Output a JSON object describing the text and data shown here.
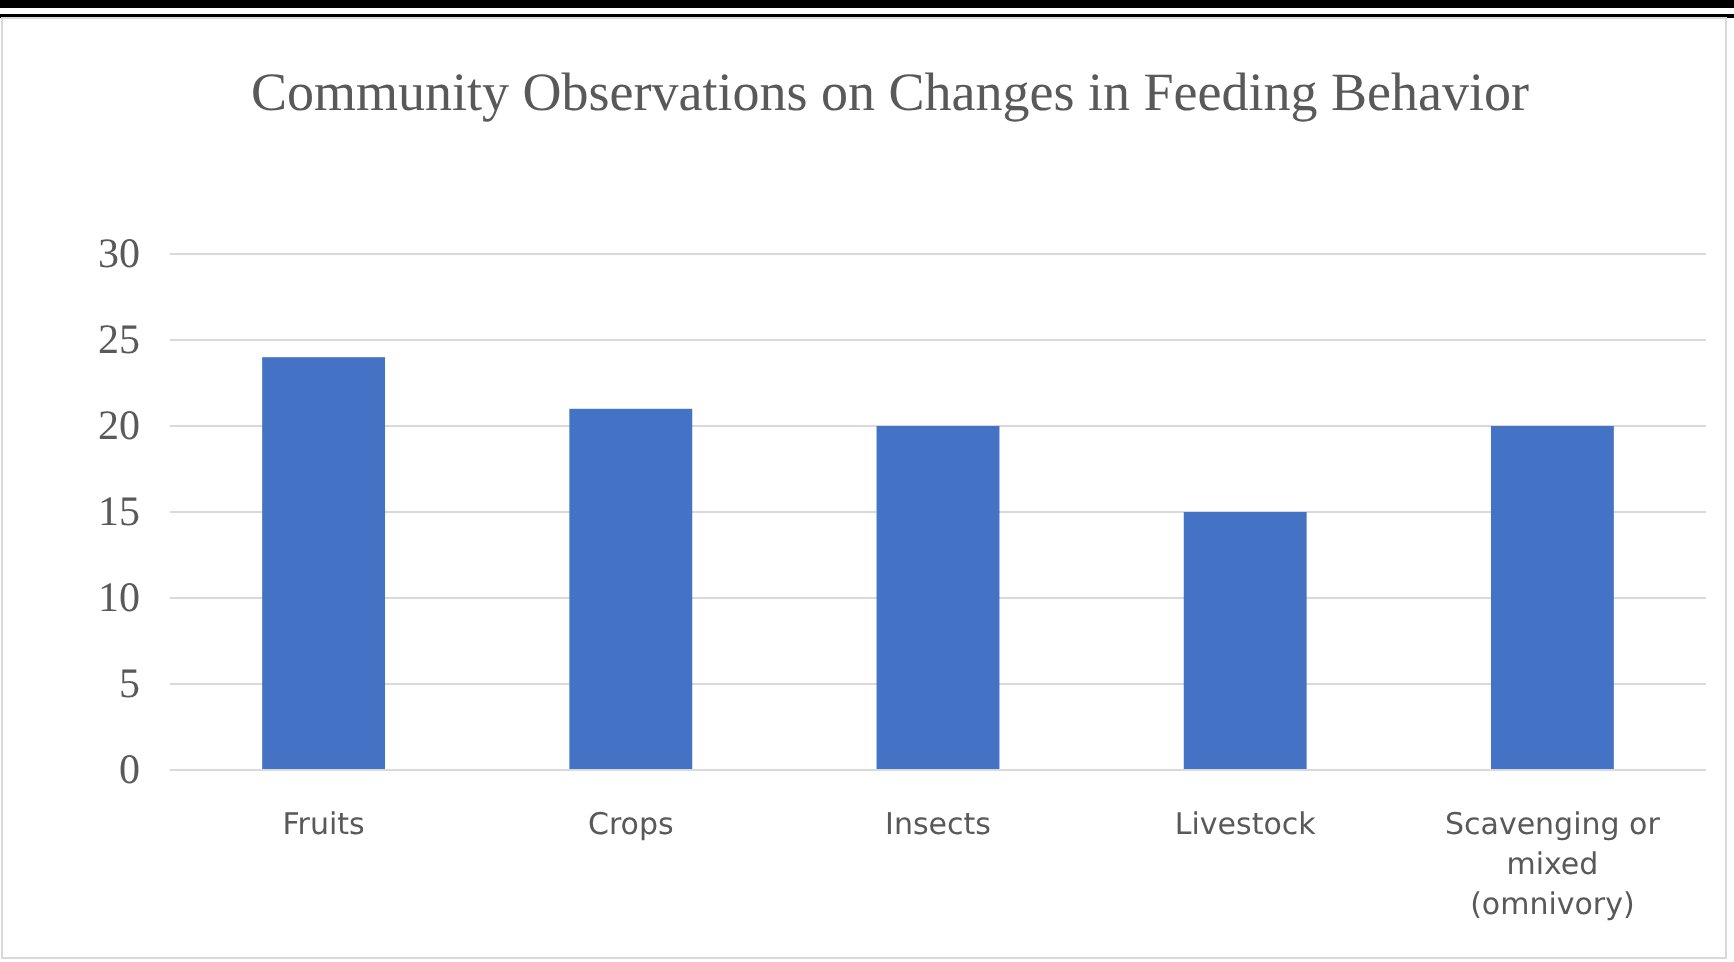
{
  "chart_data": {
    "type": "bar",
    "title": "Community  Observations on Changes  in Feeding Behavior",
    "categories": [
      "Fruits",
      "Crops",
      "Insects",
      "Livestock",
      "Scavenging or mixed (omnivory)"
    ],
    "values": [
      24,
      21,
      20,
      15,
      20
    ],
    "color": "#4472c4",
    "ylim": [
      0,
      30
    ],
    "yticks": [
      0,
      5,
      10,
      15,
      20,
      25,
      30
    ],
    "grid": "y"
  }
}
